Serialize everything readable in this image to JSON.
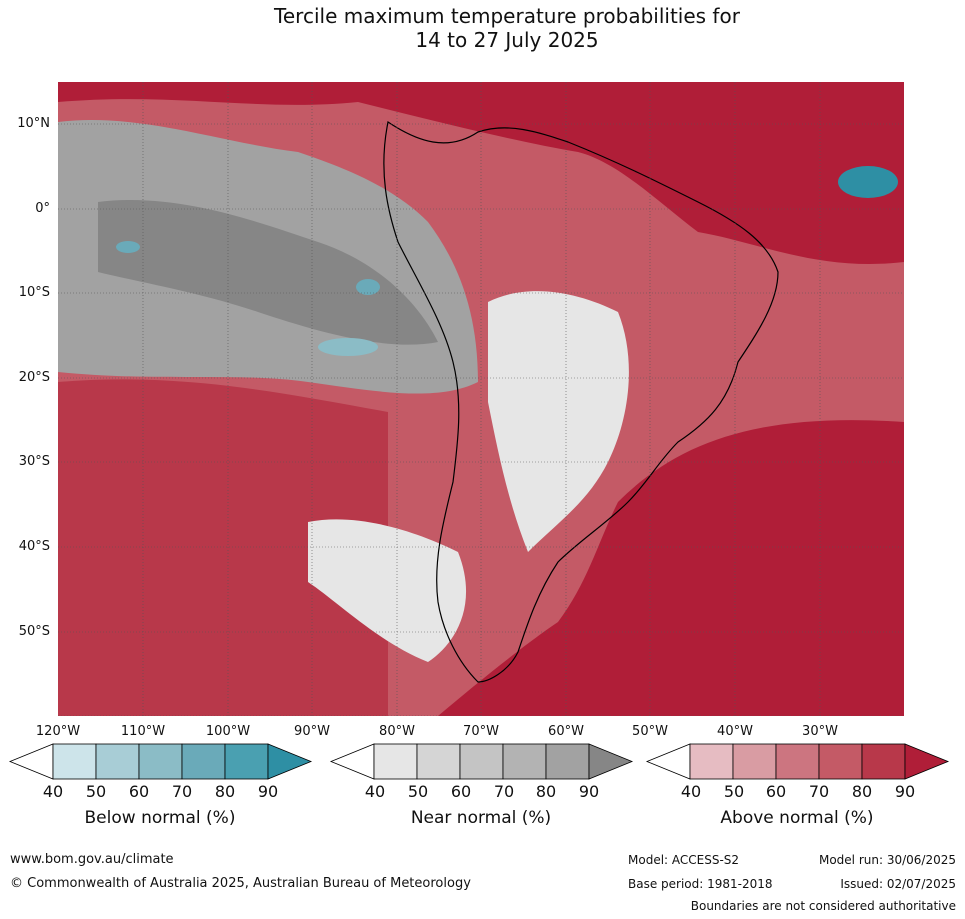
{
  "title_line1": "Tercile maximum temperature probabilities for",
  "title_line2": "14 to 27 July 2025",
  "lat_labels": [
    "10°N",
    "0°",
    "10°S",
    "20°S",
    "30°S",
    "40°S",
    "50°S"
  ],
  "lon_labels": [
    "120°W",
    "110°W",
    "100°W",
    "90°W",
    "80°W",
    "70°W",
    "60°W",
    "50°W",
    "40°W",
    "30°W"
  ],
  "colorbars": [
    {
      "title": "Below normal (%)",
      "ticks": [
        "40",
        "50",
        "60",
        "70",
        "80",
        "90"
      ],
      "colors": [
        "#ffffff",
        "#cde4ea",
        "#a8cdd6",
        "#8bbcc6",
        "#6aaab9",
        "#4aa0b1",
        "#2e8fa4"
      ]
    },
    {
      "title": "Near normal (%)",
      "ticks": [
        "40",
        "50",
        "60",
        "70",
        "80",
        "90"
      ],
      "colors": [
        "#ffffff",
        "#e6e6e6",
        "#d5d5d5",
        "#c4c4c4",
        "#b3b3b3",
        "#a2a2a2",
        "#868686"
      ]
    },
    {
      "title": "Above normal (%)",
      "ticks": [
        "40",
        "50",
        "60",
        "70",
        "80",
        "90"
      ],
      "colors": [
        "#ffffff",
        "#e6bcc2",
        "#d99ca3",
        "#cc7580",
        "#c45a66",
        "#b8384a",
        "#b01e38"
      ]
    }
  ],
  "footer": {
    "website": "www.bom.gov.au/climate",
    "copyright": "© Commonwealth of Australia 2025, Australian Bureau of Meteorology",
    "model": "Model: ACCESS-S2",
    "model_run": "Model run: 30/06/2025",
    "base_period": "Base period: 1981-2018",
    "issued": "Issued: 02/07/2025",
    "disclaimer": "Boundaries are not considered authoritative"
  }
}
